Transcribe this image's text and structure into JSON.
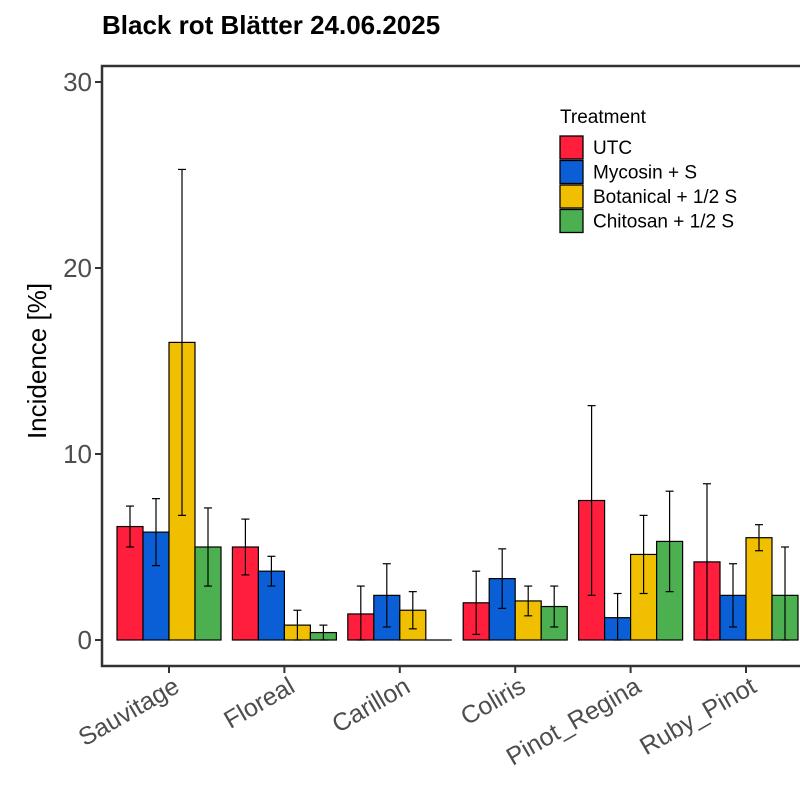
{
  "chart_data": {
    "type": "bar",
    "title": "Black rot Blätter 24.06.2025",
    "xlabel": "",
    "ylabel": "Incidence [%]",
    "ylim": [
      -1.5,
      31
    ],
    "yticks": [
      0,
      10,
      20,
      30
    ],
    "categories": [
      "Sauvitage",
      "Floreal",
      "Carillon",
      "Coliris",
      "Pinot_Regina",
      "Ruby_Pinot"
    ],
    "legend": {
      "title": "Treatment",
      "position": "top-right"
    },
    "grid": false,
    "series": [
      {
        "name": "UTC",
        "color": "#ff1f3d",
        "values": [
          6.1,
          5.0,
          1.4,
          2.0,
          7.5,
          4.2
        ],
        "errors": [
          1.1,
          1.5,
          1.5,
          1.7,
          5.1,
          4.2
        ]
      },
      {
        "name": "Mycosin + S",
        "color": "#0a5fd6",
        "values": [
          5.8,
          3.7,
          2.4,
          3.3,
          1.2,
          2.4
        ],
        "errors": [
          1.8,
          0.8,
          1.7,
          1.6,
          1.3,
          1.7
        ]
      },
      {
        "name": "Botanical + 1/2 S",
        "color": "#f0c000",
        "values": [
          16.0,
          0.8,
          1.6,
          2.1,
          4.6,
          5.5
        ],
        "errors": [
          9.3,
          0.8,
          1.0,
          0.8,
          2.1,
          0.7
        ]
      },
      {
        "name": "Chitosan + 1/2 S",
        "color": "#4caf50",
        "values": [
          5.0,
          0.4,
          0.0,
          1.8,
          5.3,
          2.4
        ],
        "errors": [
          2.1,
          0.4,
          0.0,
          1.1,
          2.7,
          2.6
        ]
      }
    ]
  }
}
